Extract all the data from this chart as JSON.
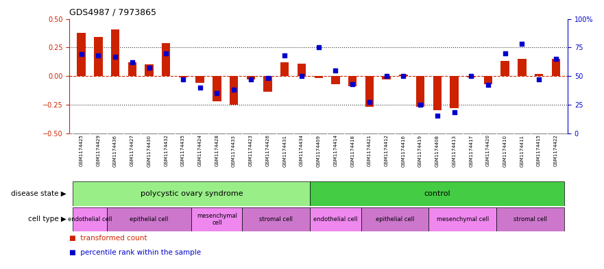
{
  "title": "GDS4987 / 7973865",
  "samples": [
    "GSM1174425",
    "GSM1174429",
    "GSM1174436",
    "GSM1174427",
    "GSM1174430",
    "GSM1174432",
    "GSM1174435",
    "GSM1174424",
    "GSM1174428",
    "GSM1174433",
    "GSM1174423",
    "GSM1174426",
    "GSM1174431",
    "GSM1174434",
    "GSM1174409",
    "GSM1174414",
    "GSM1174418",
    "GSM1174421",
    "GSM1174412",
    "GSM1174416",
    "GSM1174419",
    "GSM1174408",
    "GSM1174413",
    "GSM1174417",
    "GSM1174420",
    "GSM1174410",
    "GSM1174411",
    "GSM1174415",
    "GSM1174422"
  ],
  "bar_values": [
    0.38,
    0.34,
    0.41,
    0.12,
    0.1,
    0.29,
    -0.01,
    -0.06,
    -0.22,
    -0.25,
    -0.03,
    -0.14,
    0.12,
    0.11,
    -0.02,
    -0.07,
    -0.09,
    -0.27,
    -0.03,
    0.01,
    -0.27,
    -0.3,
    -0.28,
    -0.01,
    -0.07,
    0.13,
    0.15,
    0.02,
    0.15
  ],
  "dot_values": [
    69,
    68,
    67,
    62,
    57,
    70,
    47,
    40,
    35,
    38,
    47,
    48,
    68,
    50,
    75,
    55,
    43,
    27,
    50,
    50,
    25,
    15,
    18,
    50,
    42,
    70,
    78,
    47,
    65
  ],
  "bar_color": "#cc2200",
  "dot_color": "#0000cc",
  "ylim_left": [
    -0.5,
    0.5
  ],
  "ylim_right": [
    0,
    100
  ],
  "yticks_left": [
    -0.5,
    -0.25,
    0.0,
    0.25,
    0.5
  ],
  "yticks_right": [
    0,
    25,
    50,
    75,
    100
  ],
  "ytick_labels_right": [
    "0",
    "25",
    "50",
    "75",
    "100%"
  ],
  "hlines": [
    0.25,
    -0.25
  ],
  "hline_zero_color": "#cc2200",
  "hline_dotted_color": "#333333",
  "disease_state_groups": [
    {
      "label": "polycystic ovary syndrome",
      "start": 0,
      "end": 14,
      "color": "#99ee88"
    },
    {
      "label": "control",
      "start": 14,
      "end": 29,
      "color": "#44cc44"
    }
  ],
  "cell_type_groups": [
    {
      "label": "endothelial cell",
      "start": 0,
      "end": 2,
      "color": "#ee88ee"
    },
    {
      "label": "epithelial cell",
      "start": 2,
      "end": 7,
      "color": "#cc77cc"
    },
    {
      "label": "mesenchymal\ncell",
      "start": 7,
      "end": 10,
      "color": "#ee88ee"
    },
    {
      "label": "stromal cell",
      "start": 10,
      "end": 14,
      "color": "#cc77cc"
    },
    {
      "label": "endothelial cell",
      "start": 14,
      "end": 17,
      "color": "#ee88ee"
    },
    {
      "label": "epithelial cell",
      "start": 17,
      "end": 21,
      "color": "#cc77cc"
    },
    {
      "label": "mesenchymal cell",
      "start": 21,
      "end": 25,
      "color": "#ee88ee"
    },
    {
      "label": "stromal cell",
      "start": 25,
      "end": 29,
      "color": "#cc77cc"
    }
  ],
  "disease_state_label": "disease state",
  "cell_type_label": "cell type",
  "legend_bar_label": "transformed count",
  "legend_dot_label": "percentile rank within the sample",
  "axis_label_color_left": "#cc2200",
  "axis_label_color_right": "#0000cc",
  "bar_width": 0.5,
  "dot_size": 18,
  "xticklabel_bg": "#dddddd",
  "spine_color": "#888888"
}
